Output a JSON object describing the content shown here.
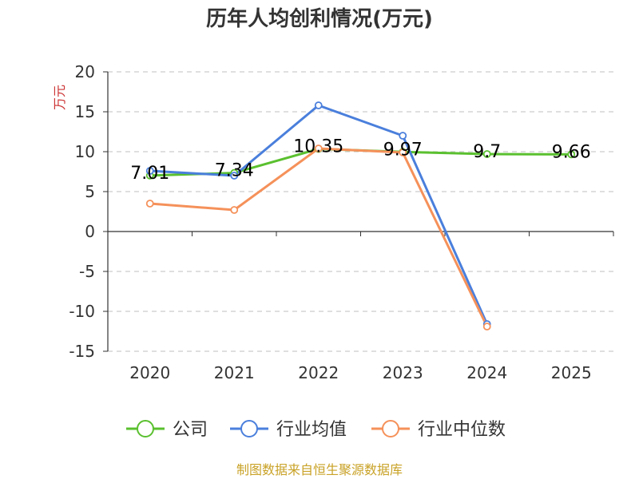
{
  "chart_data": {
    "type": "line",
    "title": "历年人均创利情况(万元)",
    "ylabel": "万元",
    "categories": [
      "2020",
      "2021",
      "2022",
      "2023",
      "2024",
      "2025"
    ],
    "ylim": [
      -15,
      20
    ],
    "yticks": [
      20,
      15,
      10,
      5,
      0,
      -5,
      -10,
      -15
    ],
    "grid": true,
    "legend_position": "bottom",
    "series": [
      {
        "name": "公司",
        "color": "#5ac02f",
        "values": [
          7.01,
          7.34,
          10.35,
          9.97,
          9.7,
          9.66
        ]
      },
      {
        "name": "行业均值",
        "color": "#4a7fdc",
        "values": [
          7.6,
          7.0,
          15.8,
          12.0,
          -11.6,
          null
        ]
      },
      {
        "name": "行业中位数",
        "color": "#f5915a",
        "values": [
          3.5,
          2.7,
          10.4,
          9.9,
          -11.9,
          null
        ]
      }
    ],
    "data_labels": [
      "7.01",
      "7.34",
      "10.35",
      "9.97",
      "9.7",
      "9.66"
    ]
  },
  "source": "制图数据来自恒生聚源数据库"
}
